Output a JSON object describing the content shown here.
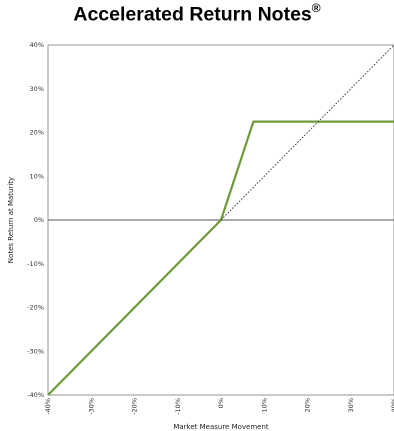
{
  "chart_data": {
    "type": "line",
    "title": "Accelerated Return Notes",
    "title_mark": "®",
    "xlabel": "Market Measure Movement",
    "ylabel": "Notes Return at Maturity",
    "xlim": [
      -40,
      40
    ],
    "ylim": [
      -40,
      40
    ],
    "x_ticks": [
      "-40%",
      "-30%",
      "-20%",
      "-10%",
      "0%",
      "10%",
      "20%",
      "30%",
      "40%"
    ],
    "y_ticks": [
      "40%",
      "30%",
      "20%",
      "10%",
      "0%",
      "-10%",
      "-20%",
      "-30%",
      "-40%"
    ],
    "x_tick_values": [
      -40,
      -30,
      -20,
      -10,
      0,
      10,
      20,
      30,
      40
    ],
    "y_tick_values": [
      40,
      30,
      20,
      10,
      0,
      -10,
      -20,
      -30,
      -40
    ],
    "grid": false,
    "series": [
      {
        "style": "solid",
        "color": "#6f9a3a",
        "x": [
          -40,
          0,
          7.5,
          40
        ],
        "y": [
          -40,
          0,
          22.5,
          22.5
        ]
      },
      {
        "style": "dotted",
        "color": "#333333",
        "x": [
          0,
          40
        ],
        "y": [
          0,
          40
        ]
      }
    ],
    "zero_line_color": "#555555"
  }
}
